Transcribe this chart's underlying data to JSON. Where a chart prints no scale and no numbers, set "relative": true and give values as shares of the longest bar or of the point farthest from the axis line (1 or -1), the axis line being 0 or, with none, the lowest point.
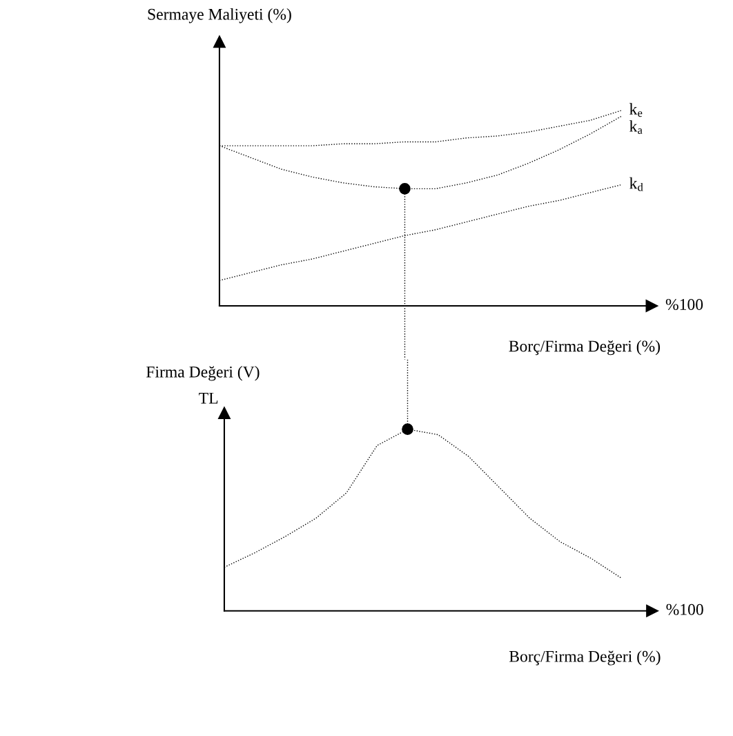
{
  "chart_data": [
    {
      "type": "line",
      "relative": true,
      "ylabel": "Sermaye Maliyeti (%)",
      "xlabel": "Borç/Firma Değeri (%)",
      "annotations": [
        "%100"
      ],
      "line_style": "dotted",
      "categories": [
        null,
        null,
        null,
        null,
        null,
        null,
        null,
        null,
        null,
        null,
        null,
        null,
        null,
        null
      ],
      "series": [
        {
          "name": "k$_{e}$",
          "color": "#000000",
          "values": [
            0.82,
            0.82,
            0.82,
            0.82,
            0.83,
            0.83,
            0.84,
            0.84,
            0.86,
            0.87,
            0.89,
            0.92,
            0.95,
            1.0
          ]
        },
        {
          "name": "k$_{a}$",
          "color": "#000000",
          "values": [
            0.82,
            0.76,
            0.7,
            0.66,
            0.63,
            0.61,
            0.6,
            0.6,
            0.63,
            0.67,
            0.73,
            0.8,
            0.88,
            0.97
          ]
        },
        {
          "name": "k$_{d}$",
          "color": "#000000",
          "values": [
            0.13,
            0.17,
            0.21,
            0.24,
            0.28,
            0.32,
            0.36,
            0.39,
            0.43,
            0.47,
            0.51,
            0.54,
            0.58,
            0.62
          ]
        },
        {
          "marker": "circle",
          "color": "#000000",
          "values": [
            null,
            null,
            null,
            null,
            null,
            null,
            0.6,
            null,
            null,
            null,
            null,
            null,
            null,
            null
          ]
        }
      ]
    },
    {
      "type": "line",
      "relative": true,
      "title": "Firma Değeri (V)",
      "ylabel": "TL",
      "xlabel": "Borç/Firma Değeri (%)",
      "annotations": [
        "%100"
      ],
      "line_style": "dotted",
      "categories": [
        null,
        null,
        null,
        null,
        null,
        null,
        null,
        null,
        null,
        null,
        null,
        null,
        null,
        null
      ],
      "series": [
        {
          "color": "#000000",
          "values": [
            0.24,
            0.32,
            0.41,
            0.51,
            0.65,
            0.91,
            1.0,
            0.97,
            0.85,
            0.68,
            0.51,
            0.38,
            0.29,
            0.18
          ]
        },
        {
          "marker": "circle",
          "color": "#000000",
          "values": [
            null,
            null,
            null,
            null,
            null,
            null,
            1.0,
            null,
            null,
            null,
            null,
            null,
            null,
            null
          ]
        }
      ]
    }
  ]
}
